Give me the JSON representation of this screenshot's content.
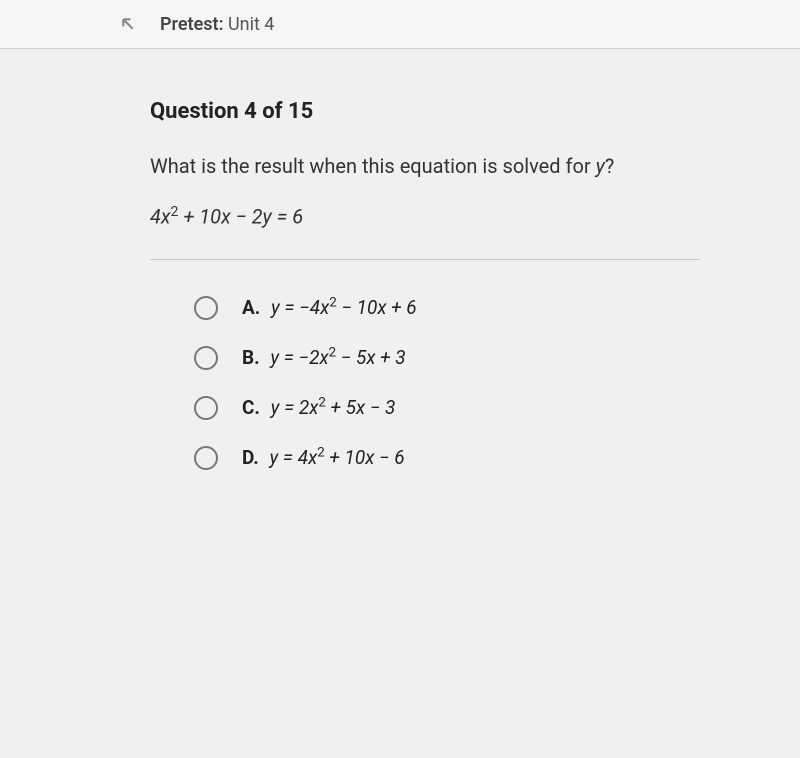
{
  "header": {
    "label_bold": "Pretest:",
    "label_rest": "Unit 4"
  },
  "question": {
    "counter": "Question 4 of 15",
    "prompt_before": "What is the result when this equation is solved for ",
    "prompt_var": "y",
    "prompt_after": "?",
    "equation_html": "4<i>x</i><sup>2</sup> + 10<i>x</i> − 2<i>y</i> = 6"
  },
  "choices": [
    {
      "letter": "A.",
      "expr_html": "<i>y</i> = −4<i>x</i><sup>2</sup> − 10<i>x</i> + 6"
    },
    {
      "letter": "B.",
      "expr_html": "<i>y</i> = −2<i>x</i><sup>2</sup> − 5<i>x</i> + 3"
    },
    {
      "letter": "C.",
      "expr_html": "<i>y</i> = 2<i>x</i><sup>2</sup> + 5<i>x</i> − 3"
    },
    {
      "letter": "D.",
      "expr_html": "<i>y</i> = 4<i>x</i><sup>2</sup> + 10<i>x</i> − 6"
    }
  ],
  "colors": {
    "page_bg": "#f0f0ee",
    "header_bg": "#f5f5f3",
    "divider": "#c8c8c6",
    "radio_border": "#777",
    "text_primary": "#222",
    "text_secondary": "#555"
  }
}
